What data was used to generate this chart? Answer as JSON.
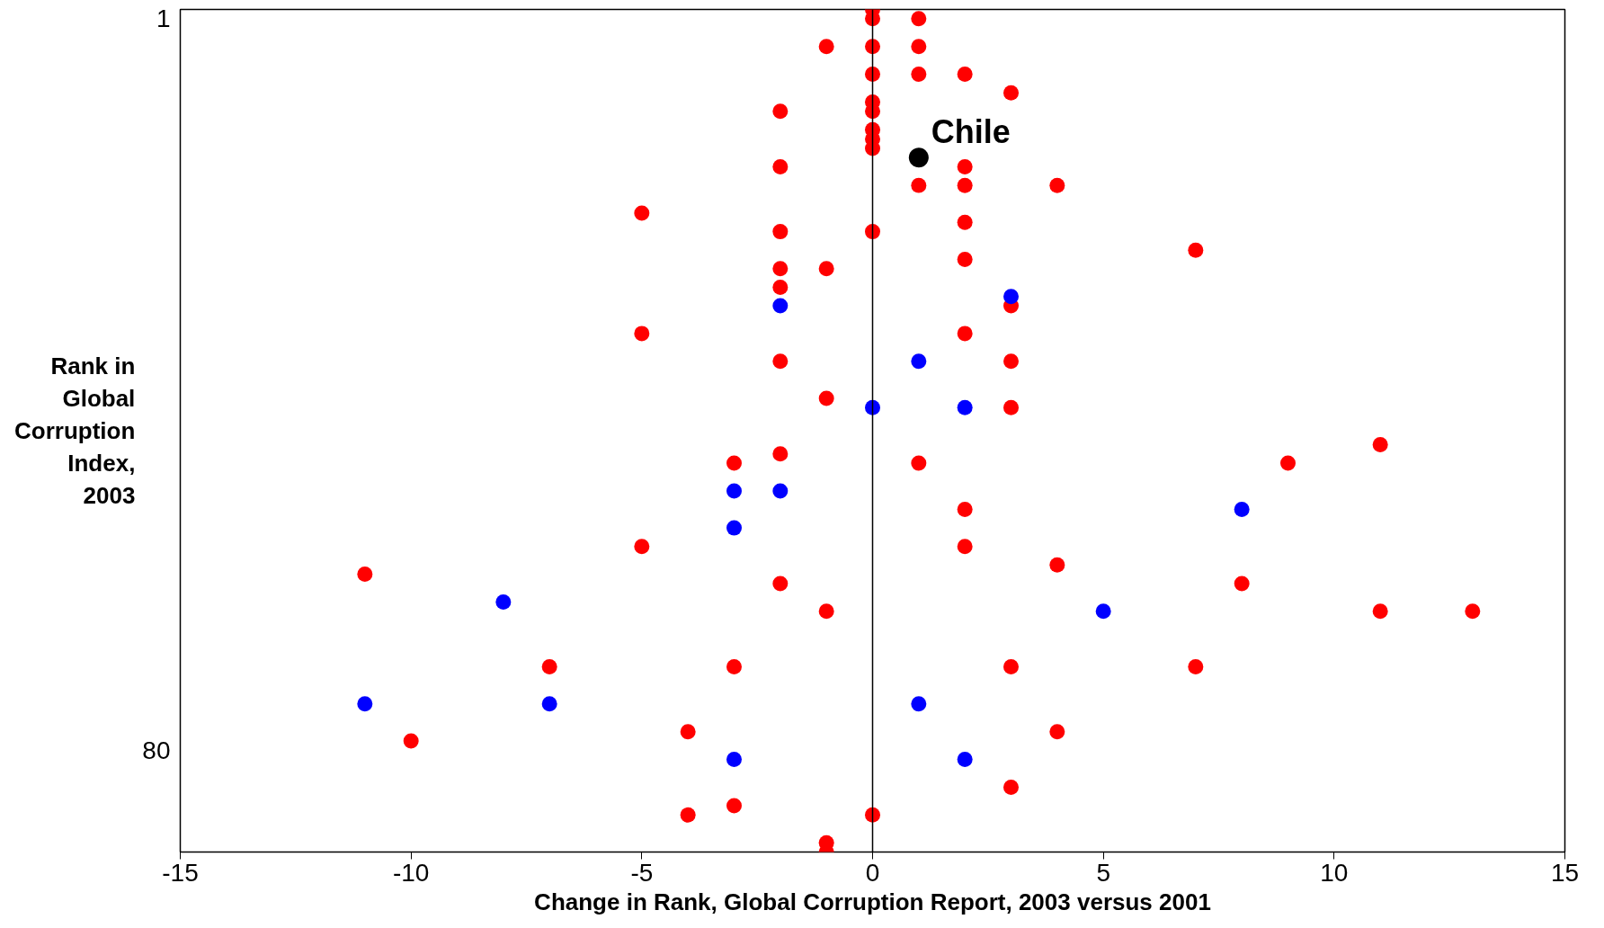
{
  "chart_data": {
    "type": "scatter",
    "xlabel": "Change in Rank, Global Corruption Report, 2003 versus 2001",
    "ylabel": "Rank in\nGlobal\nCorruption\nIndex,\n2003",
    "xlim": [
      -15,
      15
    ],
    "xticks": [
      -15,
      -10,
      -5,
      0,
      5,
      10,
      15
    ],
    "ylim": [
      91,
      0
    ],
    "yticks": [
      1,
      80
    ],
    "grid": false,
    "marker": "circle",
    "ref_lines": [
      {
        "axis": "x",
        "value": 0,
        "color": "#000000"
      }
    ],
    "annotations": [
      {
        "text": "Chile",
        "x": 1,
        "y": 16
      }
    ],
    "series": [
      {
        "color": "#ff0000",
        "x": [
          0,
          0,
          0,
          0,
          0,
          0,
          0,
          0,
          0,
          0,
          0,
          1,
          1,
          1,
          1,
          1,
          -1,
          -1,
          -1,
          -1,
          -1,
          -1,
          2,
          2,
          2,
          2,
          2,
          2,
          2,
          2,
          3,
          3,
          3,
          3,
          3,
          3,
          -2,
          -2,
          -2,
          -2,
          -2,
          -2,
          -2,
          -2,
          4,
          4,
          4,
          -5,
          -5,
          -5,
          7,
          7,
          11,
          11,
          9,
          -3,
          -3,
          -3,
          -11,
          8,
          13,
          -7,
          -4,
          -4,
          -10
        ],
        "values": [
          0,
          1,
          4,
          7,
          10,
          11,
          13,
          14,
          15,
          24,
          87,
          1,
          4,
          7,
          19,
          49,
          4,
          28,
          42,
          65,
          90,
          91,
          7,
          17,
          19,
          23,
          27,
          35,
          54,
          58,
          9,
          32,
          38,
          43,
          71,
          84,
          11,
          17,
          24,
          28,
          30,
          38,
          48,
          62,
          19,
          60,
          78,
          22,
          35,
          58,
          26,
          71,
          47,
          65,
          49,
          49,
          71,
          86,
          61,
          62,
          65,
          71,
          78,
          87,
          79
        ]
      },
      {
        "color": "#0000ff",
        "x": [
          3,
          -2,
          -2,
          1,
          1,
          0,
          2,
          2,
          -3,
          -3,
          -3,
          8,
          -8,
          5,
          -11,
          -7
        ],
        "values": [
          31,
          32,
          52,
          38,
          75,
          43,
          43,
          81,
          52,
          56,
          81,
          54,
          64,
          65,
          75,
          75
        ]
      },
      {
        "color": "#000000",
        "x": [
          1
        ],
        "values": [
          16
        ]
      }
    ]
  }
}
